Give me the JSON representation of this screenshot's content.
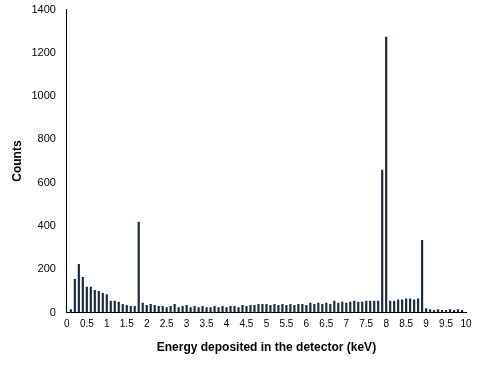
{
  "chart_data": {
    "type": "bar",
    "x_label": "Energy deposited in the detector (keV)",
    "y_label": "Counts",
    "x": [
      0.1,
      0.2,
      0.3,
      0.4,
      0.5,
      0.6,
      0.7,
      0.8,
      0.9,
      1.0,
      1.1,
      1.2,
      1.3,
      1.4,
      1.5,
      1.6,
      1.7,
      1.8,
      1.9,
      2.0,
      2.1,
      2.2,
      2.3,
      2.4,
      2.5,
      2.6,
      2.7,
      2.8,
      2.9,
      3.0,
      3.1,
      3.2,
      3.3,
      3.4,
      3.5,
      3.6,
      3.7,
      3.8,
      3.9,
      4.0,
      4.1,
      4.2,
      4.3,
      4.4,
      4.5,
      4.6,
      4.7,
      4.8,
      4.9,
      5.0,
      5.1,
      5.2,
      5.3,
      5.4,
      5.5,
      5.6,
      5.7,
      5.8,
      5.9,
      6.0,
      6.1,
      6.2,
      6.3,
      6.4,
      6.5,
      6.6,
      6.7,
      6.8,
      6.9,
      7.0,
      7.1,
      7.2,
      7.3,
      7.4,
      7.5,
      7.6,
      7.7,
      7.8,
      7.9,
      8.0,
      8.1,
      8.2,
      8.3,
      8.4,
      8.5,
      8.6,
      8.7,
      8.8,
      8.9,
      9.0,
      9.1,
      9.2,
      9.3,
      9.4,
      9.5,
      9.6,
      9.7,
      9.8,
      9.9
    ],
    "values": [
      15,
      155,
      225,
      165,
      120,
      120,
      105,
      100,
      90,
      85,
      55,
      55,
      50,
      40,
      35,
      30,
      30,
      420,
      45,
      35,
      40,
      35,
      30,
      30,
      25,
      30,
      40,
      25,
      30,
      35,
      25,
      30,
      25,
      30,
      25,
      25,
      30,
      25,
      30,
      25,
      30,
      30,
      25,
      35,
      30,
      35,
      35,
      40,
      40,
      40,
      35,
      40,
      35,
      40,
      35,
      40,
      35,
      40,
      40,
      35,
      45,
      40,
      45,
      40,
      45,
      40,
      55,
      45,
      50,
      45,
      50,
      55,
      50,
      50,
      55,
      55,
      55,
      55,
      660,
      1275,
      55,
      55,
      60,
      60,
      65,
      65,
      60,
      65,
      335,
      20,
      15,
      12,
      15,
      12,
      12,
      15,
      12,
      15,
      12
    ],
    "color": "#1c2a44",
    "xlim": [
      0,
      10
    ],
    "xticks": [
      0,
      0.5,
      1,
      1.5,
      2,
      2.5,
      3,
      3.5,
      4,
      4.5,
      5,
      5.5,
      6,
      6.5,
      7,
      7.5,
      8,
      8.5,
      9,
      9.5,
      10
    ],
    "ylim": [
      0,
      1400
    ],
    "yticks": [
      0,
      200,
      400,
      600,
      800,
      1000,
      1200,
      1400
    ],
    "grid": false
  }
}
